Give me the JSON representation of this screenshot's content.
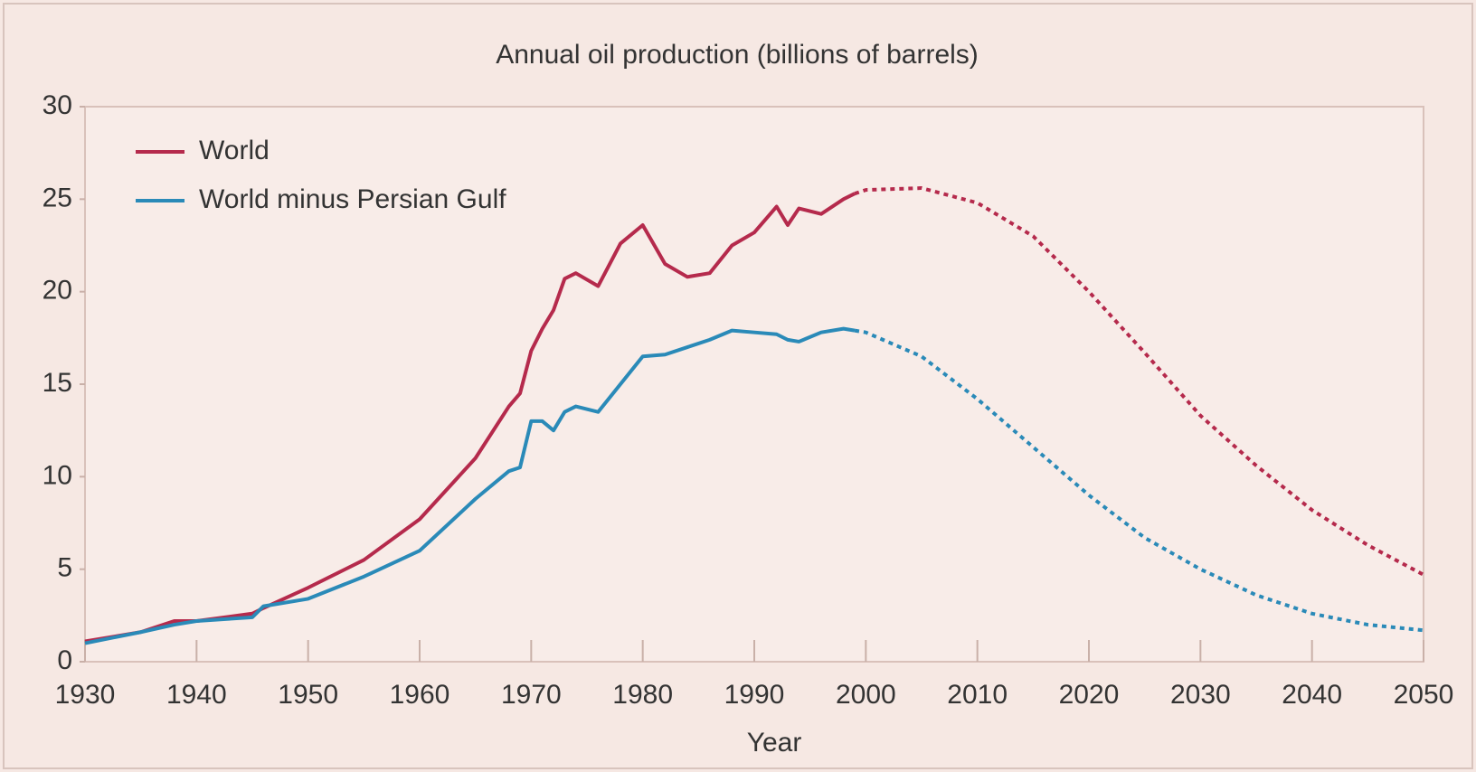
{
  "chart_data": {
    "type": "line",
    "title": "Annual oil production (billions of barrels)",
    "x_label": "Year",
    "x": [
      1930,
      1935,
      1938,
      1940,
      1945,
      1946,
      1950,
      1955,
      1960,
      1965,
      1968,
      1969,
      1970,
      1971,
      1972,
      1973,
      1974,
      1976,
      1978,
      1980,
      1982,
      1984,
      1986,
      1988,
      1990,
      1992,
      1993,
      1994,
      1996,
      1998,
      1999,
      2000,
      2005,
      2010,
      2015,
      2020,
      2025,
      2030,
      2035,
      2040,
      2045,
      2050
    ],
    "series": [
      {
        "name": "World",
        "color": "#b52a4c",
        "values": [
          1.1,
          1.6,
          2.2,
          2.2,
          2.6,
          2.9,
          4.0,
          5.5,
          7.7,
          11.0,
          13.8,
          14.5,
          16.8,
          18.0,
          19.0,
          20.7,
          21.0,
          20.3,
          22.6,
          23.6,
          21.5,
          20.8,
          21.0,
          22.5,
          23.2,
          24.6,
          23.6,
          24.5,
          24.2,
          25.0,
          25.3,
          null,
          null,
          null,
          null,
          null,
          null,
          null,
          null,
          null,
          null,
          null
        ],
        "forecast": [
          null,
          null,
          null,
          null,
          null,
          null,
          null,
          null,
          null,
          null,
          null,
          null,
          null,
          null,
          null,
          null,
          null,
          null,
          null,
          null,
          null,
          null,
          null,
          null,
          null,
          null,
          null,
          null,
          null,
          null,
          25.3,
          25.5,
          25.6,
          24.8,
          23.0,
          20.0,
          16.7,
          13.3,
          10.6,
          8.2,
          6.3,
          4.7
        ]
      },
      {
        "name": "World minus Persian Gulf",
        "color": "#2a8ab8",
        "values": [
          1.0,
          1.6,
          2.0,
          2.2,
          2.4,
          3.0,
          3.4,
          4.6,
          6.0,
          8.8,
          10.3,
          10.5,
          13.0,
          13.0,
          12.5,
          13.5,
          13.8,
          13.5,
          15.0,
          16.5,
          16.6,
          17.0,
          17.4,
          17.9,
          17.8,
          17.7,
          17.4,
          17.3,
          17.8,
          18.0,
          17.9,
          null,
          null,
          null,
          null,
          null,
          null,
          null,
          null,
          null,
          null,
          null
        ],
        "forecast": [
          null,
          null,
          null,
          null,
          null,
          null,
          null,
          null,
          null,
          null,
          null,
          null,
          null,
          null,
          null,
          null,
          null,
          null,
          null,
          null,
          null,
          null,
          null,
          null,
          null,
          null,
          null,
          null,
          null,
          null,
          17.9,
          17.8,
          16.5,
          14.2,
          11.6,
          9.0,
          6.7,
          5.0,
          3.6,
          2.6,
          2.0,
          1.7
        ]
      }
    ],
    "xlim": [
      1930,
      2050
    ],
    "xticks": [
      1930,
      1940,
      1950,
      1960,
      1970,
      1980,
      1990,
      2000,
      2010,
      2020,
      2030,
      2040,
      2050
    ],
    "ylim": [
      0,
      30
    ],
    "yticks": [
      0,
      5,
      10,
      15,
      20,
      25,
      30
    ],
    "legend": "upper left"
  }
}
